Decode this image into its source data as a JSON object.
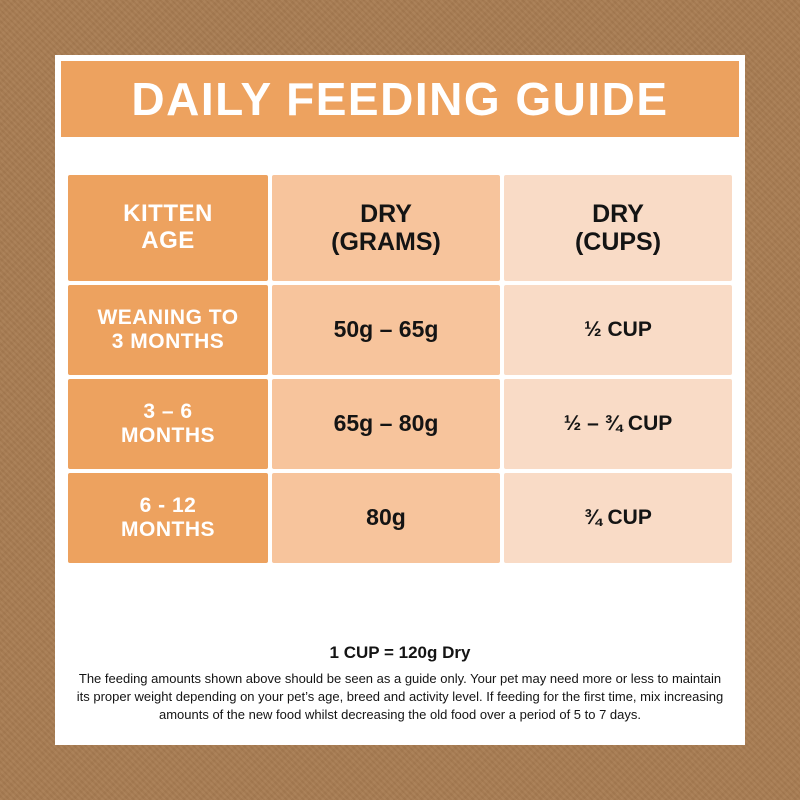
{
  "title": "DAILY FEEDING GUIDE",
  "table": {
    "headers": [
      "KITTEN\nAGE",
      "DRY\n(GRAMS)",
      "DRY\n(CUPS)"
    ],
    "rows": [
      {
        "age": "WEANING TO\n3 MONTHS",
        "grams": "50g – 65g",
        "cups": "½ CUP"
      },
      {
        "age": "3 – 6\nMONTHS",
        "grams": "65g – 80g",
        "cups": "½ – ¾ CUP"
      },
      {
        "age": "6 - 12\nMONTHS",
        "grams": "80g",
        "cups": "¾ CUP"
      }
    ]
  },
  "footer": {
    "cup_note": "1 CUP = 120g Dry",
    "disclaimer": "The feeding amounts shown above should be seen as a guide only. Your pet may need more or less to maintain its proper weight depending on your pet’s age, breed and activity level. If feeding for the first time, mix increasing amounts of the new food whilst decreasing the old food over a period of 5 to 7 days."
  },
  "colors": {
    "background_brown": "#a87c52",
    "banner_orange": "#eda25f",
    "col_age": "#eda25f",
    "col_grams": "#f7c49c",
    "col_cups": "#f9dbc6"
  }
}
